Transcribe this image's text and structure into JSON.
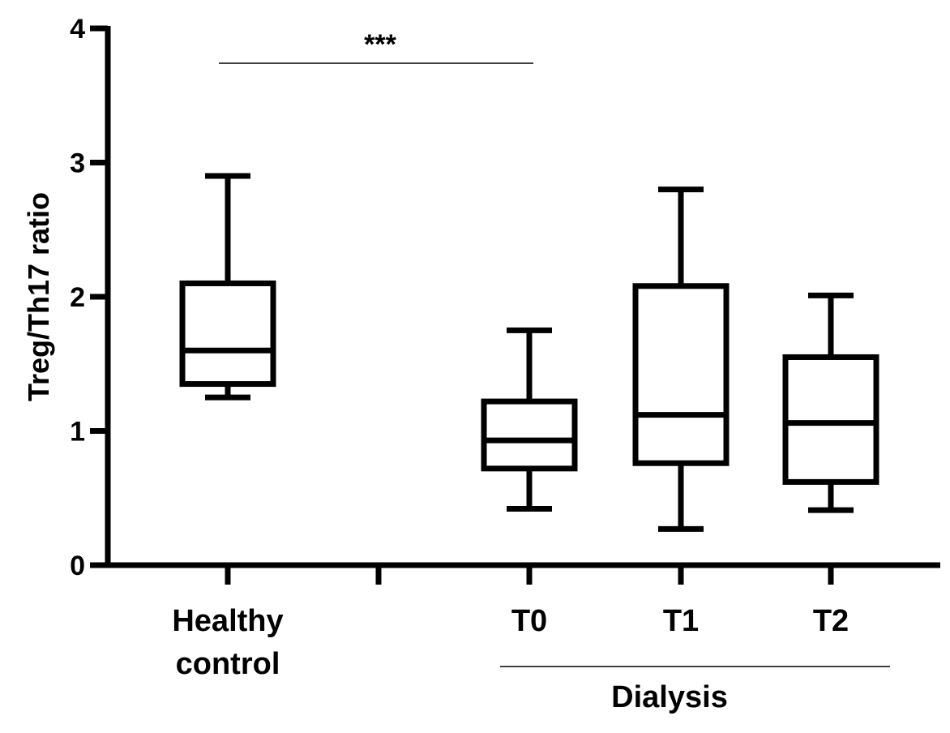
{
  "chart_data": {
    "type": "box",
    "ylabel": "Treg/Th17 ratio",
    "ylim": [
      0,
      4
    ],
    "yticks": [
      0,
      1,
      2,
      3,
      4
    ],
    "categories": [
      {
        "id": "healthy",
        "lines": [
          "Healthy",
          "control"
        ],
        "group": null,
        "whisker_low": 1.25,
        "q1": 1.35,
        "median": 1.6,
        "q3": 2.1,
        "whisker_high": 2.9
      },
      {
        "id": "t0",
        "lines": [
          "T0"
        ],
        "group": "Dialysis",
        "whisker_low": 0.42,
        "q1": 0.72,
        "median": 0.93,
        "q3": 1.22,
        "whisker_high": 1.75
      },
      {
        "id": "t1",
        "lines": [
          "T1"
        ],
        "group": "Dialysis",
        "whisker_low": 0.27,
        "q1": 0.76,
        "median": 1.12,
        "q3": 2.08,
        "whisker_high": 2.8
      },
      {
        "id": "t2",
        "lines": [
          "T2"
        ],
        "group": "Dialysis",
        "whisker_low": 0.41,
        "q1": 0.62,
        "median": 1.06,
        "q3": 1.55,
        "whisker_high": 2.01
      }
    ],
    "significance": {
      "from": "healthy",
      "to": "t0",
      "label": "***"
    },
    "group_label": "Dialysis"
  }
}
